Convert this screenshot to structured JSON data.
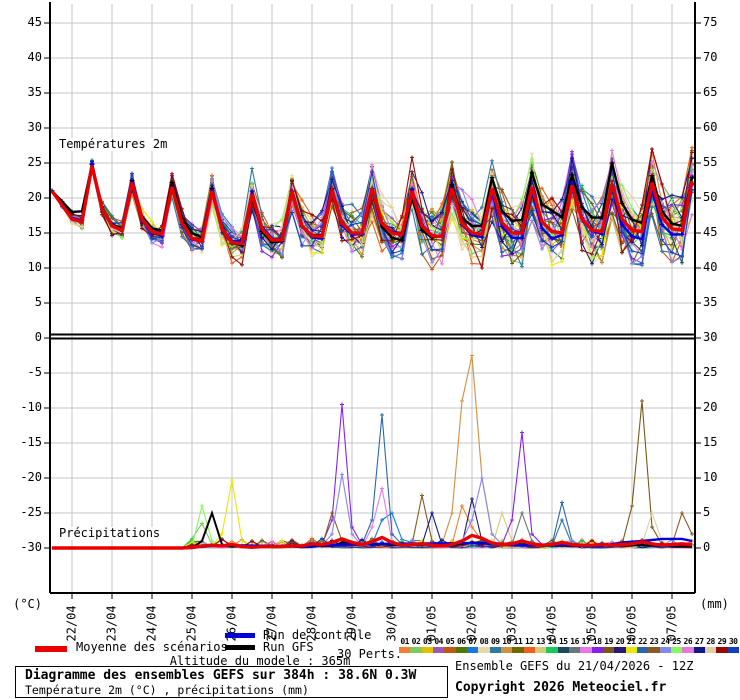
{
  "panel_labels": {
    "temperature": "Températures 2m",
    "precipitation": "Précipitations"
  },
  "axes": {
    "left_unit": "(°C)",
    "right_unit": "(mm)",
    "left_ticks": [
      45,
      40,
      35,
      30,
      25,
      20,
      15,
      10,
      5,
      0,
      -5,
      -10,
      -15,
      -20,
      -25,
      -30
    ],
    "right_ticks": [
      75,
      70,
      65,
      60,
      55,
      50,
      45,
      40,
      35,
      30,
      25,
      20,
      15,
      10,
      5,
      0
    ],
    "dates": [
      "22/04",
      "23/04",
      "24/04",
      "25/04",
      "26/04",
      "27/04",
      "28/04",
      "29/04",
      "30/04",
      "01/05",
      "02/05",
      "03/05",
      "04/05",
      "05/05",
      "06/05",
      "07/05"
    ]
  },
  "legend": {
    "mean": {
      "label": "Moyenne des scénarios",
      "color": "#e80000"
    },
    "control": {
      "label": "Run de contrôle",
      "color": "#0000dd"
    },
    "gfs": {
      "label": "Run GFS",
      "color": "#000000"
    },
    "perts_label": "30 Perts.",
    "members": [
      {
        "id": "01",
        "color": "#f08030"
      },
      {
        "id": "02",
        "color": "#80c860"
      },
      {
        "id": "03",
        "color": "#e0c000"
      },
      {
        "id": "04",
        "color": "#9858c0"
      },
      {
        "id": "05",
        "color": "#c05818"
      },
      {
        "id": "06",
        "color": "#507800"
      },
      {
        "id": "07",
        "color": "#1878e0"
      },
      {
        "id": "08",
        "color": "#e8d8a8"
      },
      {
        "id": "09",
        "color": "#3078a0"
      },
      {
        "id": "10",
        "color": "#d09040"
      },
      {
        "id": "11",
        "color": "#6b6b00"
      },
      {
        "id": "12",
        "color": "#f06018"
      },
      {
        "id": "13",
        "color": "#d8c878"
      },
      {
        "id": "14",
        "color": "#18c858"
      },
      {
        "id": "15",
        "color": "#1c4860"
      },
      {
        "id": "16",
        "color": "#687878"
      },
      {
        "id": "17",
        "color": "#e878e8"
      },
      {
        "id": "18",
        "color": "#8820e8"
      },
      {
        "id": "19",
        "color": "#7a5818"
      },
      {
        "id": "20",
        "color": "#281878"
      },
      {
        "id": "21",
        "color": "#e8e800"
      },
      {
        "id": "22",
        "color": "#2868a8"
      },
      {
        "id": "23",
        "color": "#8a5a20"
      },
      {
        "id": "24",
        "color": "#8888e8"
      },
      {
        "id": "25",
        "color": "#88f860"
      },
      {
        "id": "26",
        "color": "#e878d8"
      },
      {
        "id": "27",
        "color": "#101888"
      },
      {
        "id": "28",
        "color": "#e0d0a0"
      },
      {
        "id": "29",
        "color": "#980800"
      },
      {
        "id": "30",
        "color": "#1040c0"
      }
    ]
  },
  "texts": {
    "altitude": "Altitude du modele : 365m",
    "title": "Diagramme des ensembles GEFS sur 384h : 38.6N 0.3W",
    "subtitle": "Température 2m (°C) , précipitations (mm)",
    "run_info": "Ensemble GEFS du 21/04/2026 - 12Z",
    "copyright": "Copyright 2026 Meteociel.fr"
  },
  "chart_data": {
    "type": "line",
    "title": "Diagramme des ensembles GEFS sur 384h : 38.6N 0.3W",
    "run": "GEFS 21/04/2026 12Z",
    "time": {
      "step_hours": 6,
      "count": 65,
      "total_hours": 384
    },
    "x_dates": [
      "22/04",
      "23/04",
      "24/04",
      "25/04",
      "26/04",
      "27/04",
      "28/04",
      "29/04",
      "30/04",
      "01/05",
      "02/05",
      "03/05",
      "04/05",
      "05/05",
      "06/05",
      "07/05"
    ],
    "grid": true,
    "temperature": {
      "ylabel": "Températures 2m",
      "ylim": [
        -30,
        47
      ],
      "mean": [
        21,
        19,
        17,
        16.6,
        24.6,
        18.5,
        16,
        15.4,
        22.2,
        17,
        15.2,
        14.8,
        21.6,
        16.4,
        14.2,
        13.8,
        21,
        15.6,
        13.6,
        13.5,
        20.6,
        15.6,
        14,
        14,
        21,
        16,
        14.6,
        14.5,
        21,
        16.4,
        15,
        15,
        21.4,
        16.4,
        15,
        14.8,
        21,
        16,
        14.6,
        14.5,
        21.4,
        16.4,
        15,
        14.8,
        21.4,
        16.5,
        15,
        15,
        21.6,
        16.6,
        15.2,
        15,
        21.8,
        17,
        15.4,
        15.2,
        22,
        17,
        15.4,
        15.2,
        22.2,
        17.2,
        15.6,
        15.4,
        22.4
      ],
      "spread_base": 0.3,
      "spread_growth": 3.5,
      "control_offsets": [
        [
          0,
          0
        ],
        [
          24,
          0.3
        ],
        [
          72,
          -0.3
        ],
        [
          120,
          0.4
        ],
        [
          168,
          -0.4
        ],
        [
          216,
          0.3
        ],
        [
          264,
          -0.5
        ],
        [
          300,
          -1.0
        ],
        [
          312,
          0.4
        ],
        [
          336,
          -0.6
        ],
        [
          360,
          -1.2
        ],
        [
          384,
          -0.4
        ]
      ],
      "gfs_offsets": [
        [
          0,
          0
        ],
        [
          18,
          1.5
        ],
        [
          24,
          0.2
        ],
        [
          48,
          0.3
        ],
        [
          84,
          0.8
        ],
        [
          120,
          -0.5
        ],
        [
          168,
          0.3
        ],
        [
          216,
          -1.0
        ],
        [
          240,
          0.5
        ],
        [
          264,
          1.5
        ],
        [
          288,
          2.0
        ],
        [
          300,
          3.0
        ],
        [
          312,
          1.5
        ],
        [
          330,
          2.0
        ],
        [
          336,
          3.0
        ],
        [
          348,
          1.5
        ],
        [
          360,
          1.0
        ],
        [
          384,
          0.5
        ]
      ]
    },
    "precipitation": {
      "ylabel": "Précipitations",
      "ylim_mm": [
        0,
        77
      ],
      "mean": [
        0,
        0,
        0,
        0,
        0,
        0,
        0,
        0,
        0,
        0,
        0,
        0,
        0,
        0,
        0.1,
        0.3,
        0.4,
        0.3,
        0.5,
        0.2,
        0.1,
        0.2,
        0.2,
        0.2,
        0.3,
        0.3,
        0.6,
        0.5,
        0.8,
        1.3,
        0.8,
        0.5,
        0.9,
        1.5,
        0.8,
        0.4,
        0.5,
        0.6,
        0.4,
        0.3,
        0.5,
        1,
        1.8,
        1.4,
        0.7,
        0.5,
        0.6,
        1,
        0.6,
        0.4,
        0.5,
        0.8,
        0.5,
        0.4,
        0.4,
        0.5,
        0.4,
        0.5,
        0.6,
        0.9,
        0.6,
        0.4,
        0.5,
        0.6,
        0.5
      ],
      "control_points": [
        [
          90,
          0.2
        ],
        [
          108,
          0.4
        ],
        [
          150,
          0.2
        ],
        [
          174,
          0.5
        ],
        [
          198,
          0.6
        ],
        [
          252,
          0.7
        ],
        [
          282,
          0.4
        ],
        [
          330,
          0.3
        ],
        [
          342,
          0.8
        ],
        [
          354,
          1.0
        ],
        [
          366,
          1.3
        ],
        [
          378,
          1.3
        ],
        [
          384,
          1.0
        ]
      ],
      "gfs_points": [
        [
          84,
          0
        ],
        [
          90,
          1
        ],
        [
          96,
          5
        ],
        [
          102,
          0.5
        ],
        [
          108,
          0.2
        ],
        [
          168,
          0.3
        ],
        [
          174,
          0.8
        ],
        [
          192,
          0.5
        ],
        [
          240,
          0.4
        ],
        [
          252,
          0.8
        ],
        [
          282,
          0.5
        ],
        [
          312,
          0.3
        ],
        [
          354,
          0.4
        ],
        [
          384,
          0.2
        ]
      ],
      "member_spikes": [
        {
          "member": 25,
          "points": [
            [
              84,
              0
            ],
            [
              90,
              6
            ],
            [
              96,
              1
            ],
            [
              102,
              0
            ]
          ]
        },
        {
          "member": 21,
          "points": [
            [
              96,
              0
            ],
            [
              102,
              2
            ],
            [
              108,
              9.7
            ],
            [
              114,
              1
            ],
            [
              120,
              0
            ]
          ]
        },
        {
          "member": 2,
          "points": [
            [
              84,
              0
            ],
            [
              90,
              3.5
            ],
            [
              96,
              0.5
            ]
          ]
        },
        {
          "member": 18,
          "points": [
            [
              162,
              0.5
            ],
            [
              168,
              4
            ],
            [
              174,
              20.5
            ],
            [
              180,
              3
            ],
            [
              186,
              0.5
            ]
          ]
        },
        {
          "member": 24,
          "points": [
            [
              162,
              0.3
            ],
            [
              168,
              2
            ],
            [
              174,
              10.5
            ],
            [
              180,
              2
            ],
            [
              186,
              0.3
            ]
          ]
        },
        {
          "member": 22,
          "points": [
            [
              186,
              0.5
            ],
            [
              192,
              4
            ],
            [
              198,
              19
            ],
            [
              204,
              2
            ],
            [
              210,
              0.5
            ]
          ]
        },
        {
          "member": 17,
          "points": [
            [
              186,
              0
            ],
            [
              192,
              3
            ],
            [
              198,
              8.5
            ],
            [
              204,
              1
            ],
            [
              210,
              0.3
            ]
          ]
        },
        {
          "member": 23,
          "points": [
            [
              162,
              0
            ],
            [
              168,
              5
            ],
            [
              174,
              1
            ],
            [
              180,
              0.5
            ]
          ]
        },
        {
          "member": 10,
          "points": [
            [
              234,
              0.5
            ],
            [
              240,
              5
            ],
            [
              246,
              21
            ],
            [
              252,
              27.5
            ],
            [
              258,
              10
            ],
            [
              264,
              2
            ],
            [
              270,
              0.5
            ]
          ]
        },
        {
          "member": 24,
          "points": [
            [
              246,
              1
            ],
            [
              252,
              4
            ],
            [
              258,
              10
            ],
            [
              264,
              2
            ],
            [
              270,
              0.5
            ]
          ]
        },
        {
          "member": 20,
          "points": [
            [
              246,
              0.5
            ],
            [
              252,
              7
            ],
            [
              258,
              1
            ]
          ]
        },
        {
          "member": 18,
          "points": [
            [
              270,
              0.5
            ],
            [
              276,
              4
            ],
            [
              282,
              16.5
            ],
            [
              288,
              2
            ],
            [
              294,
              0.5
            ]
          ]
        },
        {
          "member": 13,
          "points": [
            [
              264,
              0
            ],
            [
              270,
              5
            ],
            [
              276,
              1
            ]
          ]
        },
        {
          "member": 22,
          "points": [
            [
              300,
              0.5
            ],
            [
              306,
              6.5
            ],
            [
              312,
              1
            ]
          ]
        },
        {
          "member": 19,
          "points": [
            [
              342,
              0.5
            ],
            [
              348,
              6
            ],
            [
              354,
              21
            ],
            [
              360,
              3
            ],
            [
              366,
              0.5
            ]
          ]
        },
        {
          "member": 28,
          "points": [
            [
              354,
              0.5
            ],
            [
              360,
              5
            ],
            [
              366,
              1
            ]
          ]
        },
        {
          "member": 23,
          "points": [
            [
              372,
              0.5
            ],
            [
              378,
              5
            ],
            [
              384,
              2
            ]
          ]
        },
        {
          "member": 23,
          "points": [
            [
              216,
              0.5
            ],
            [
              222,
              7.5
            ],
            [
              228,
              1
            ]
          ]
        },
        {
          "member": 27,
          "points": [
            [
              222,
              0.5
            ],
            [
              228,
              5
            ],
            [
              234,
              0.5
            ]
          ]
        },
        {
          "member": 7,
          "points": [
            [
              192,
              0.5
            ],
            [
              198,
              4
            ],
            [
              204,
              5
            ],
            [
              210,
              1
            ]
          ]
        },
        {
          "member": 16,
          "points": [
            [
              276,
              0.5
            ],
            [
              282,
              5
            ],
            [
              288,
              1
            ]
          ]
        },
        {
          "member": 9,
          "points": [
            [
              300,
              0.3
            ],
            [
              306,
              4
            ],
            [
              312,
              0.5
            ]
          ]
        },
        {
          "member": 1,
          "points": [
            [
              240,
              0.5
            ],
            [
              246,
              6
            ],
            [
              252,
              3
            ],
            [
              258,
              1
            ]
          ]
        }
      ]
    }
  }
}
